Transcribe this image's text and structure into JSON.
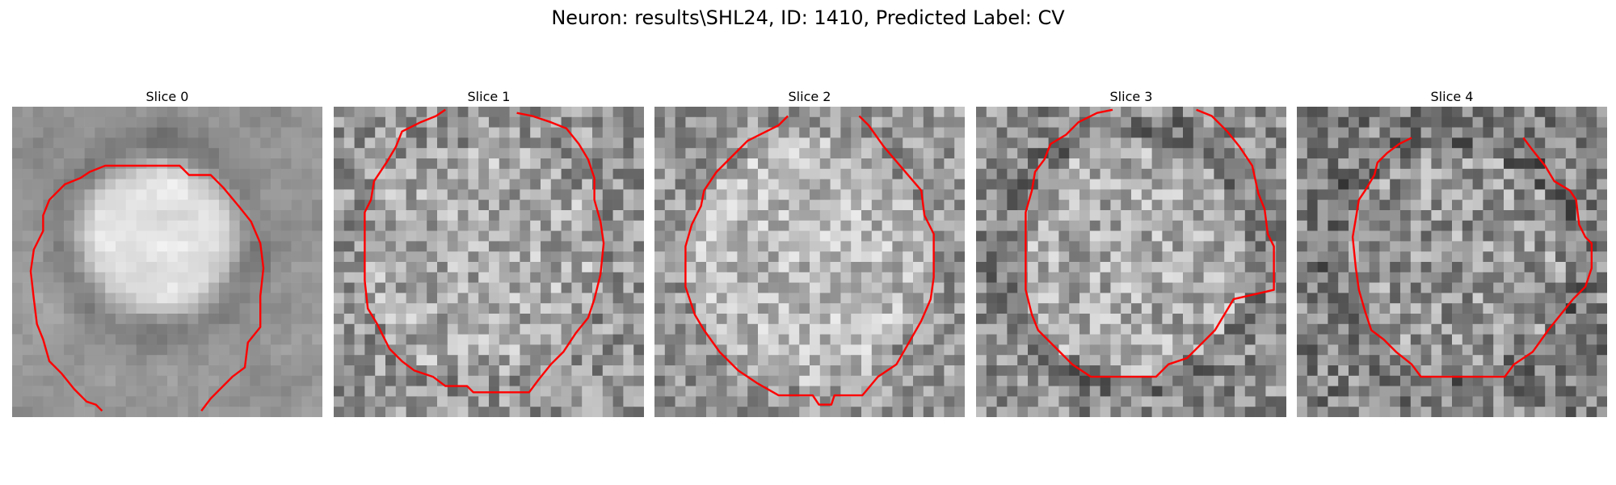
{
  "figure": {
    "title": "Neuron: results\\SHL24, ID: 1410, Predicted Label: CV",
    "panels": [
      {
        "title": "Slice 0"
      },
      {
        "title": "Slice 1"
      },
      {
        "title": "Slice 2"
      },
      {
        "title": "Slice 3"
      },
      {
        "title": "Slice 4"
      }
    ]
  },
  "colors": {
    "contour": "#ff0000",
    "image_colormap": "gray"
  }
}
